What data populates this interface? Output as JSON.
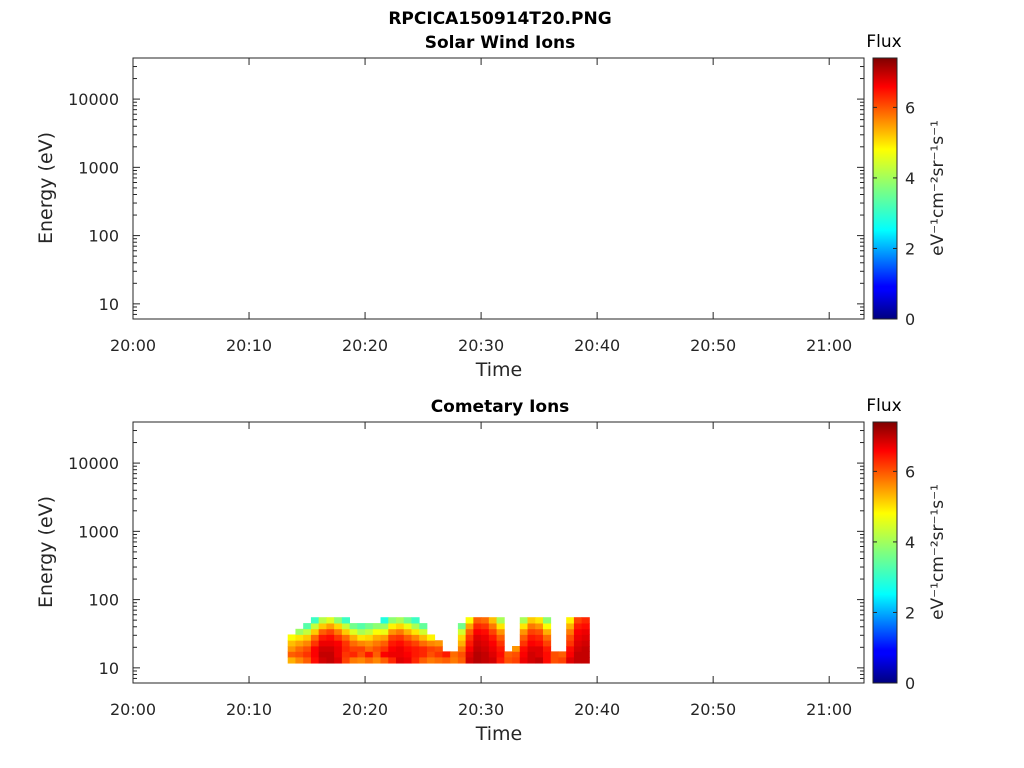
{
  "figure_title": "RPCICA150914T20.PNG",
  "chart_data": [
    {
      "type": "heatmap",
      "title": "Solar Wind Ions",
      "xlabel": "Time",
      "ylabel": "Energy (eV)",
      "x_ticks": [
        "20:00",
        "20:10",
        "20:20",
        "20:30",
        "20:40",
        "20:50",
        "21:00"
      ],
      "x_range": [
        "20:00",
        "21:03"
      ],
      "y_scale": "log",
      "y_ticks": [
        "10",
        "100",
        "1000",
        "10000"
      ],
      "y_range": [
        6,
        40000
      ],
      "colorbar": {
        "label": "Flux",
        "unit": "eV⁻¹cm⁻²sr⁻¹s⁻¹",
        "ticks": [
          "0",
          "2",
          "4",
          "6"
        ],
        "range": [
          0,
          7.4
        ],
        "colormap": "jet"
      },
      "cells": []
    },
    {
      "type": "heatmap",
      "title": "Cometary Ions",
      "xlabel": "Time",
      "ylabel": "Energy (eV)",
      "x_ticks": [
        "20:00",
        "20:10",
        "20:20",
        "20:30",
        "20:40",
        "20:50",
        "21:00"
      ],
      "x_range": [
        "20:00",
        "21:03"
      ],
      "y_scale": "log",
      "y_ticks": [
        "10",
        "100",
        "1000",
        "10000"
      ],
      "y_range": [
        6,
        40000
      ],
      "colorbar": {
        "label": "Flux",
        "unit": "eV⁻¹cm⁻²sr⁻¹s⁻¹",
        "ticks": [
          "0",
          "2",
          "4",
          "6"
        ],
        "range": [
          0,
          7.4
        ],
        "colormap": "jet"
      },
      "energy_bins": [
        13,
        16,
        19,
        23,
        28,
        34,
        41,
        50
      ],
      "time_bins": [
        "20:13:20",
        "20:14:00",
        "20:14:40",
        "20:15:20",
        "20:16:00",
        "20:16:40",
        "20:17:20",
        "20:18:00",
        "20:18:40",
        "20:19:20",
        "20:20:00",
        "20:20:40",
        "20:21:20",
        "20:22:00",
        "20:22:40",
        "20:23:20",
        "20:24:00",
        "20:24:40",
        "20:25:20",
        "20:26:00",
        "20:26:40",
        "20:27:20",
        "20:28:00",
        "20:28:40",
        "20:29:20",
        "20:30:00",
        "20:30:40",
        "20:31:20",
        "20:32:00",
        "20:32:40",
        "20:33:20",
        "20:34:00",
        "20:34:40",
        "20:35:20",
        "20:36:00",
        "20:36:40",
        "20:37:20",
        "20:38:00",
        "20:38:40"
      ],
      "flux": [
        [
          5.2,
          5.5,
          5.8,
          6.4,
          6.8,
          6.9,
          6.7,
          6.0,
          5.6,
          5.5,
          5.7,
          5.5,
          5.8,
          6.2,
          6.7,
          6.6,
          6.2,
          5.8,
          5.6,
          5.7,
          5.8,
          5.6,
          5.8,
          6.8,
          7.0,
          6.9,
          6.8,
          6.3,
          5.9,
          6.0,
          6.6,
          6.8,
          6.9,
          6.4,
          5.9,
          6.0,
          6.7,
          6.9,
          6.9
        ],
        [
          5.8,
          5.9,
          6.1,
          6.5,
          6.9,
          6.9,
          6.6,
          6.1,
          6.2,
          5.9,
          6.3,
          5.8,
          6.5,
          6.6,
          6.6,
          6.5,
          6.3,
          6.2,
          5.9,
          6.1,
          6.3,
          5.7,
          5.9,
          6.7,
          7.0,
          6.9,
          6.7,
          6.4,
          5.8,
          5.9,
          6.5,
          6.8,
          6.7,
          6.4,
          5.9,
          5.8,
          6.5,
          6.9,
          6.9
        ],
        [
          5.4,
          5.7,
          5.9,
          6.5,
          6.8,
          6.8,
          6.6,
          6.2,
          6.0,
          6.0,
          5.7,
          5.9,
          6.1,
          6.5,
          6.6,
          6.4,
          6.3,
          6.2,
          6.0,
          5.9,
          0,
          0,
          5.6,
          6.5,
          6.9,
          6.8,
          6.6,
          6.3,
          0,
          5.4,
          6.4,
          6.7,
          6.7,
          6.3,
          0,
          0,
          6.4,
          6.8,
          6.9
        ],
        [
          5.1,
          5.3,
          5.5,
          6.1,
          6.6,
          6.6,
          6.5,
          6.1,
          5.7,
          5.5,
          5.4,
          5.6,
          5.8,
          6.3,
          6.4,
          6.2,
          6.0,
          5.7,
          5.5,
          5.4,
          0,
          0,
          5.2,
          6.3,
          6.8,
          6.7,
          6.5,
          6.1,
          0,
          0,
          6.1,
          6.5,
          6.4,
          6.0,
          0,
          0,
          6.1,
          6.7,
          6.8
        ],
        [
          4.6,
          4.8,
          5.0,
          5.7,
          6.3,
          6.4,
          6.1,
          5.7,
          5.2,
          4.8,
          4.9,
          5.2,
          5.3,
          6.0,
          6.1,
          5.8,
          5.5,
          5.1,
          4.7,
          0,
          0,
          0,
          4.9,
          6.1,
          6.7,
          6.6,
          6.3,
          5.8,
          0,
          0,
          5.8,
          6.3,
          6.2,
          5.7,
          0,
          0,
          5.9,
          6.6,
          6.7
        ],
        [
          0,
          3.9,
          4.2,
          5.0,
          5.8,
          6.0,
          5.6,
          5.0,
          4.4,
          4.0,
          4.2,
          4.6,
          4.5,
          5.4,
          5.6,
          5.2,
          4.8,
          4.3,
          0,
          0,
          0,
          0,
          4.3,
          5.8,
          6.5,
          6.4,
          6.0,
          5.4,
          0,
          0,
          5.4,
          6.0,
          5.9,
          5.2,
          0,
          0,
          5.6,
          6.5,
          6.6
        ],
        [
          0,
          0,
          3.4,
          4.2,
          5.0,
          5.3,
          4.9,
          4.2,
          3.6,
          3.4,
          3.6,
          3.8,
          3.9,
          4.7,
          4.9,
          4.5,
          4.0,
          3.5,
          0,
          0,
          0,
          0,
          3.6,
          5.3,
          6.2,
          6.1,
          5.6,
          4.8,
          0,
          0,
          4.8,
          5.6,
          5.4,
          4.6,
          0,
          0,
          5.2,
          6.3,
          6.4
        ],
        [
          0,
          0,
          0,
          3.2,
          4.1,
          4.4,
          3.8,
          3.2,
          0,
          0,
          0,
          0,
          3.0,
          3.8,
          4.0,
          3.6,
          3.2,
          0,
          0,
          0,
          0,
          0,
          0,
          4.6,
          5.8,
          5.7,
          5.1,
          4.0,
          0,
          0,
          4.0,
          5.0,
          4.8,
          3.8,
          0,
          0,
          4.7,
          6.0,
          6.2
        ]
      ]
    }
  ]
}
